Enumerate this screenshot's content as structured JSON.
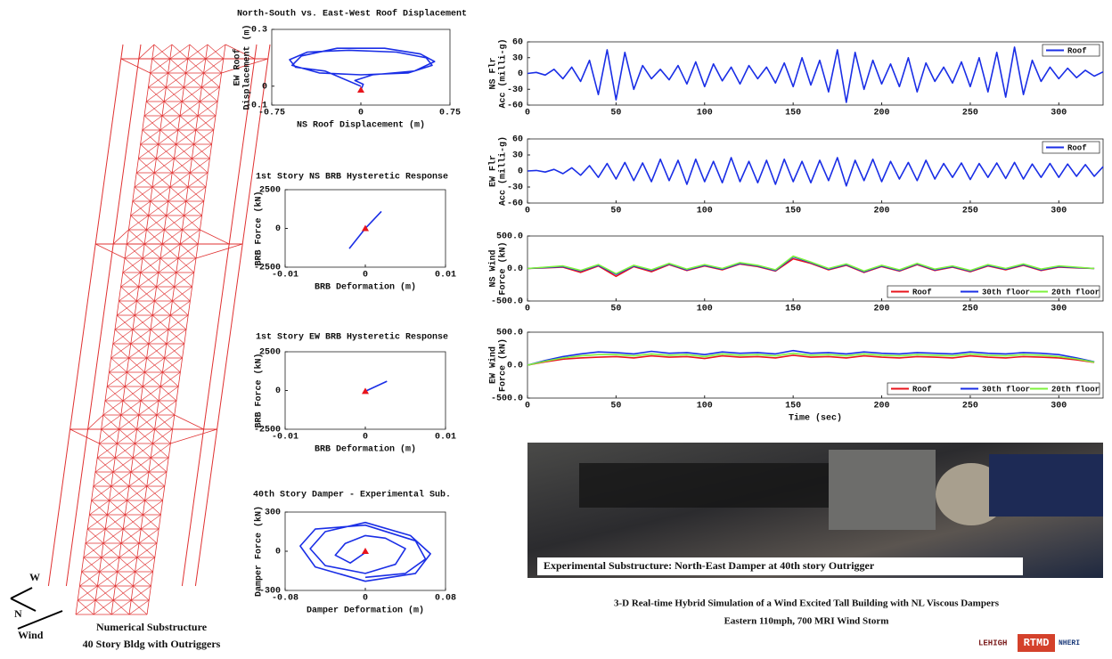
{
  "chart_data": [
    {
      "type": "line",
      "title": "North-South vs. East-West Roof Displacement",
      "xlabel": "NS Roof Displacement (m)",
      "ylabel": [
        "EW Roof",
        "Displacement (m)"
      ],
      "xlim": [
        -0.75,
        0.75
      ],
      "xticks": [
        -0.75,
        0,
        0.75
      ],
      "ylim": [
        -0.1,
        0.3
      ],
      "yticks": [
        -0.1,
        0,
        0.3
      ],
      "series": [
        {
          "color": "#1a2ee6",
          "x": [
            0,
            -0.3,
            -0.55,
            -0.6,
            -0.45,
            -0.1,
            0.3,
            0.55,
            0.6,
            0.4,
            0,
            -0.35,
            -0.58,
            -0.5,
            -0.2,
            0.2,
            0.5,
            0.62,
            0.45,
            0.1,
            -0.05,
            0.02,
            0
          ],
          "values": [
            0,
            0.08,
            0.1,
            0.14,
            0.18,
            0.19,
            0.18,
            0.15,
            0.11,
            0.07,
            0.06,
            0.07,
            0.11,
            0.16,
            0.2,
            0.2,
            0.17,
            0.13,
            0.08,
            0.06,
            0.03,
            0.01,
            -0.02
          ]
        }
      ],
      "current_point": {
        "x": 0,
        "y": -0.02,
        "color": "#e8141c"
      }
    },
    {
      "type": "line",
      "title": "1st Story NS BRB Hysteretic Response",
      "xlabel": "BRB Deformation (m)",
      "ylabel": [
        "BRB Force (kN)"
      ],
      "xlim": [
        -0.01,
        0.01
      ],
      "xticks": [
        -0.01,
        0,
        0.01
      ],
      "ylim": [
        -2500,
        2500
      ],
      "yticks": [
        -2500,
        0,
        2500
      ],
      "series": [
        {
          "color": "#1a2ee6",
          "x": [
            -0.002,
            0,
            0.002
          ],
          "values": [
            -1300,
            0,
            1100
          ]
        }
      ],
      "current_point": {
        "x": 0,
        "y": 0,
        "color": "#e8141c"
      }
    },
    {
      "type": "line",
      "title": "1st Story EW BRB Hysteretic Response",
      "xlabel": "BRB Deformation (m)",
      "ylabel": [
        "BRB Force (kN)"
      ],
      "xlim": [
        -0.01,
        0.01
      ],
      "xticks": [
        -0.01,
        0,
        0.01
      ],
      "ylim": [
        -2500,
        2500
      ],
      "yticks": [
        -2500,
        0,
        2500
      ],
      "series": [
        {
          "color": "#1a2ee6",
          "x": [
            0,
            0.0027
          ],
          "values": [
            -50,
            600
          ]
        }
      ],
      "current_point": {
        "x": 0,
        "y": -50,
        "color": "#e8141c"
      }
    },
    {
      "type": "line",
      "title": "40th Story Damper - Experimental Sub.",
      "xlabel": "Damper Deformation (m)",
      "ylabel": [
        "Damper Force (kN)"
      ],
      "xlim": [
        -0.08,
        0.08
      ],
      "xticks": [
        -0.08,
        0,
        0.08
      ],
      "ylim": [
        -300,
        300
      ],
      "yticks": [
        -300,
        0,
        300
      ],
      "series": [
        {
          "color": "#1a2ee6",
          "x": [
            0,
            0.04,
            0.06,
            0.05,
            0,
            -0.05,
            -0.065,
            -0.05,
            0,
            0.05,
            0.065,
            0.045,
            0,
            -0.04,
            -0.055,
            -0.04,
            0,
            0.03,
            0.04,
            0.02,
            0,
            -0.02,
            -0.03,
            -0.015,
            0
          ],
          "values": [
            -200,
            -170,
            -60,
            80,
            200,
            170,
            40,
            -120,
            -230,
            -170,
            -20,
            120,
            220,
            150,
            20,
            -110,
            -170,
            -100,
            20,
            100,
            120,
            60,
            -30,
            -90,
            -10
          ]
        }
      ],
      "current_point": {
        "x": 0,
        "y": 0,
        "color": "#e8141c"
      }
    },
    {
      "type": "line",
      "ylabel": [
        "NS Flr",
        "Acc (milli-g)"
      ],
      "legend": "upper right",
      "xlim": [
        0,
        325
      ],
      "xticks": [
        0,
        50,
        100,
        150,
        200,
        250,
        300
      ],
      "ylim": [
        -60,
        60
      ],
      "yticks": [
        -60,
        -30,
        0,
        30,
        60
      ],
      "x": [
        0,
        5,
        10,
        15,
        20,
        25,
        30,
        35,
        40,
        45,
        50,
        55,
        60,
        65,
        70,
        75,
        80,
        85,
        90,
        95,
        100,
        105,
        110,
        115,
        120,
        125,
        130,
        135,
        140,
        145,
        150,
        155,
        160,
        165,
        170,
        175,
        180,
        185,
        190,
        195,
        200,
        205,
        210,
        215,
        220,
        225,
        230,
        235,
        240,
        245,
        250,
        255,
        260,
        265,
        270,
        275,
        280,
        285,
        290,
        295,
        300,
        305,
        310,
        315,
        320,
        325
      ],
      "series": [
        {
          "name": "Roof",
          "color": "#1a2ee6",
          "values": [
            0,
            2,
            -3,
            8,
            -10,
            12,
            -15,
            25,
            -40,
            45,
            -50,
            40,
            -30,
            15,
            -10,
            8,
            -12,
            15,
            -20,
            22,
            -25,
            18,
            -14,
            12,
            -20,
            15,
            -10,
            12,
            -18,
            20,
            -25,
            30,
            -22,
            25,
            -35,
            45,
            -55,
            40,
            -30,
            25,
            -20,
            18,
            -25,
            30,
            -35,
            20,
            -15,
            12,
            -18,
            22,
            -25,
            30,
            -35,
            40,
            -45,
            50,
            -40,
            25,
            -15,
            12,
            -10,
            10,
            -8,
            6,
            -5,
            3
          ]
        }
      ]
    },
    {
      "type": "line",
      "ylabel": [
        "EW Flr",
        "Acc (milli-g)"
      ],
      "legend": "upper right",
      "xlim": [
        0,
        325
      ],
      "xticks": [
        0,
        50,
        100,
        150,
        200,
        250,
        300
      ],
      "ylim": [
        -60,
        60
      ],
      "yticks": [
        -60,
        -30,
        0,
        30,
        60
      ],
      "x": [
        0,
        5,
        10,
        15,
        20,
        25,
        30,
        35,
        40,
        45,
        50,
        55,
        60,
        65,
        70,
        75,
        80,
        85,
        90,
        95,
        100,
        105,
        110,
        115,
        120,
        125,
        130,
        135,
        140,
        145,
        150,
        155,
        160,
        165,
        170,
        175,
        180,
        185,
        190,
        195,
        200,
        205,
        210,
        215,
        220,
        225,
        230,
        235,
        240,
        245,
        250,
        255,
        260,
        265,
        270,
        275,
        280,
        285,
        290,
        295,
        300,
        305,
        310,
        315,
        320,
        325
      ],
      "series": [
        {
          "name": "Roof",
          "color": "#1a2ee6",
          "values": [
            0,
            1,
            -2,
            3,
            -5,
            6,
            -8,
            10,
            -12,
            14,
            -15,
            16,
            -18,
            15,
            -20,
            22,
            -18,
            20,
            -25,
            22,
            -20,
            18,
            -22,
            25,
            -20,
            18,
            -22,
            20,
            -25,
            22,
            -20,
            18,
            -22,
            20,
            -18,
            25,
            -28,
            20,
            -18,
            22,
            -20,
            18,
            -15,
            16,
            -18,
            20,
            -15,
            14,
            -12,
            15,
            -16,
            14,
            -12,
            15,
            -14,
            16,
            -15,
            13,
            -12,
            14,
            -12,
            13,
            -10,
            12,
            -10,
            8
          ]
        }
      ]
    },
    {
      "type": "line",
      "ylabel": [
        "NS Wind",
        "Force (kN)"
      ],
      "legend": "lower right",
      "xlim": [
        0,
        325
      ],
      "xticks": [
        0,
        50,
        100,
        150,
        200,
        250,
        300
      ],
      "ylim": [
        -500,
        500
      ],
      "yticks": [
        {
          "value": -500,
          "label": "-500.0"
        },
        {
          "value": 0,
          "label": "0.0"
        },
        {
          "value": 500,
          "label": "500.0"
        }
      ],
      "x": [
        0,
        10,
        20,
        30,
        40,
        50,
        60,
        70,
        80,
        90,
        100,
        110,
        120,
        130,
        140,
        150,
        160,
        170,
        180,
        190,
        200,
        210,
        220,
        230,
        240,
        250,
        260,
        270,
        280,
        290,
        300,
        310,
        320
      ],
      "series": [
        {
          "name": "Roof",
          "color": "#e8141c",
          "values": [
            0,
            10,
            20,
            -60,
            40,
            -120,
            30,
            -50,
            60,
            -30,
            40,
            -20,
            70,
            30,
            -40,
            150,
            80,
            -20,
            50,
            -60,
            30,
            -40,
            60,
            -30,
            20,
            -50,
            40,
            -20,
            50,
            -30,
            20,
            10,
            0
          ]
        },
        {
          "name": "30th floor",
          "color": "#1a2ee6",
          "values": [
            0,
            15,
            30,
            -40,
            50,
            -90,
            40,
            -30,
            70,
            -20,
            50,
            -10,
            80,
            40,
            -30,
            180,
            90,
            -10,
            60,
            -50,
            40,
            -30,
            70,
            -20,
            30,
            -40,
            50,
            -10,
            60,
            -20,
            30,
            15,
            0
          ]
        },
        {
          "name": "20th floor",
          "color": "#7ef23c",
          "values": [
            0,
            20,
            40,
            -30,
            60,
            -80,
            50,
            -20,
            80,
            -10,
            60,
            0,
            90,
            50,
            -20,
            190,
            100,
            0,
            70,
            -40,
            50,
            -20,
            80,
            -10,
            40,
            -30,
            60,
            0,
            70,
            -10,
            40,
            20,
            0
          ]
        }
      ]
    },
    {
      "type": "line",
      "ylabel": [
        "EW Wind",
        "Force (kN)"
      ],
      "xlabel": "Time (sec)",
      "legend": "lower right",
      "xlim": [
        0,
        325
      ],
      "xticks": [
        0,
        50,
        100,
        150,
        200,
        250,
        300
      ],
      "ylim": [
        -500,
        500
      ],
      "yticks": [
        {
          "value": -500,
          "label": "-500.0"
        },
        {
          "value": 0,
          "label": "0.0"
        },
        {
          "value": 500,
          "label": "500.0"
        }
      ],
      "x": [
        0,
        10,
        20,
        30,
        40,
        50,
        60,
        70,
        80,
        90,
        100,
        110,
        120,
        130,
        140,
        150,
        160,
        170,
        180,
        190,
        200,
        210,
        220,
        230,
        240,
        250,
        260,
        270,
        280,
        290,
        300,
        310,
        320
      ],
      "series": [
        {
          "name": "Roof",
          "color": "#e8141c",
          "values": [
            0,
            50,
            90,
            110,
            120,
            130,
            110,
            140,
            120,
            130,
            100,
            140,
            120,
            130,
            110,
            150,
            120,
            130,
            110,
            140,
            120,
            110,
            130,
            120,
            110,
            140,
            120,
            110,
            130,
            120,
            110,
            80,
            40
          ]
        },
        {
          "name": "30th floor",
          "color": "#1a2ee6",
          "values": [
            0,
            70,
            130,
            170,
            200,
            190,
            170,
            210,
            180,
            190,
            160,
            200,
            180,
            190,
            170,
            220,
            180,
            190,
            170,
            200,
            180,
            170,
            190,
            180,
            170,
            200,
            180,
            170,
            190,
            180,
            160,
            110,
            50
          ]
        },
        {
          "name": "20th floor",
          "color": "#7ef23c",
          "values": [
            0,
            60,
            110,
            140,
            160,
            160,
            140,
            170,
            150,
            160,
            130,
            170,
            150,
            160,
            140,
            180,
            150,
            160,
            140,
            170,
            150,
            140,
            160,
            150,
            140,
            170,
            150,
            140,
            160,
            150,
            130,
            95,
            45
          ]
        }
      ]
    }
  ],
  "photo_caption": "Experimental Substructure: North-East Damper at 40th story Outrigger",
  "caption": [
    "3-D Real-time Hybrid Simulation of a Wind Excited Tall Building with NL Viscous Dampers",
    "Eastern 110mph, 700 MRI Wind Storm"
  ],
  "model": {
    "compass": [
      "W",
      "N",
      "Wind"
    ],
    "label": [
      "Numerical Substructure",
      "40 Story Bldg with Outriggers"
    ]
  },
  "logos": [
    "LEHIGH",
    "RTMD",
    "NHERI"
  ]
}
